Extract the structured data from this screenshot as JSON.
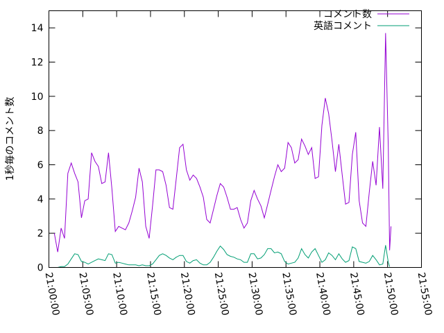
{
  "chart_data": {
    "type": "line",
    "title": "",
    "xlabel": "",
    "ylabel": "1秒毎のコメント数",
    "ylim": [
      0,
      15
    ],
    "yticks": [
      0,
      2,
      4,
      6,
      8,
      10,
      12,
      14
    ],
    "xlim_minutes": [
      0,
      55
    ],
    "xticks": [
      {
        "label": "21:00:00",
        "minute": 0
      },
      {
        "label": "21:05:00",
        "minute": 5
      },
      {
        "label": "21:10:00",
        "minute": 10
      },
      {
        "label": "21:15:00",
        "minute": 15
      },
      {
        "label": "21:20:00",
        "minute": 20
      },
      {
        "label": "21:25:00",
        "minute": 25
      },
      {
        "label": "21:30:00",
        "minute": 30
      },
      {
        "label": "21:35:00",
        "minute": 35
      },
      {
        "label": "21:40:00",
        "minute": 40
      },
      {
        "label": "21:45:00",
        "minute": 45
      },
      {
        "label": "21:50:00",
        "minute": 50
      },
      {
        "label": "21:55:00",
        "minute": 55
      }
    ],
    "grid": false,
    "legend_position": "top-right",
    "series": [
      {
        "name": "コメント数",
        "color": "#9400d3",
        "points": [
          [
            0.8,
            2.0
          ],
          [
            1.3,
            0.9
          ],
          [
            1.8,
            2.3
          ],
          [
            2.3,
            1.7
          ],
          [
            2.8,
            5.5
          ],
          [
            3.3,
            6.1
          ],
          [
            3.8,
            5.5
          ],
          [
            4.3,
            5.0
          ],
          [
            4.8,
            2.9
          ],
          [
            5.3,
            3.9
          ],
          [
            5.8,
            4.0
          ],
          [
            6.3,
            6.7
          ],
          [
            6.8,
            6.2
          ],
          [
            7.3,
            5.9
          ],
          [
            7.8,
            4.9
          ],
          [
            8.3,
            5.0
          ],
          [
            8.8,
            6.7
          ],
          [
            9.3,
            4.6
          ],
          [
            9.8,
            2.1
          ],
          [
            10.3,
            2.4
          ],
          [
            10.8,
            2.3
          ],
          [
            11.3,
            2.2
          ],
          [
            11.8,
            2.6
          ],
          [
            12.3,
            3.3
          ],
          [
            12.8,
            4.1
          ],
          [
            13.3,
            5.8
          ],
          [
            13.8,
            5.0
          ],
          [
            14.3,
            2.4
          ],
          [
            14.8,
            1.7
          ],
          [
            15.3,
            3.6
          ],
          [
            15.8,
            5.7
          ],
          [
            16.3,
            5.7
          ],
          [
            16.8,
            5.6
          ],
          [
            17.3,
            4.8
          ],
          [
            17.8,
            3.5
          ],
          [
            18.3,
            3.4
          ],
          [
            18.8,
            5.2
          ],
          [
            19.3,
            7.0
          ],
          [
            19.8,
            7.2
          ],
          [
            20.3,
            5.7
          ],
          [
            20.8,
            5.1
          ],
          [
            21.3,
            5.4
          ],
          [
            21.8,
            5.2
          ],
          [
            22.3,
            4.7
          ],
          [
            22.8,
            4.1
          ],
          [
            23.3,
            2.8
          ],
          [
            23.8,
            2.6
          ],
          [
            24.3,
            3.4
          ],
          [
            24.8,
            4.2
          ],
          [
            25.3,
            4.9
          ],
          [
            25.8,
            4.7
          ],
          [
            26.3,
            4.1
          ],
          [
            26.8,
            3.4
          ],
          [
            27.3,
            3.4
          ],
          [
            27.8,
            3.5
          ],
          [
            28.3,
            2.8
          ],
          [
            28.8,
            2.3
          ],
          [
            29.3,
            2.6
          ],
          [
            29.8,
            3.9
          ],
          [
            30.3,
            4.5
          ],
          [
            30.8,
            4.0
          ],
          [
            31.3,
            3.6
          ],
          [
            31.8,
            2.9
          ],
          [
            32.3,
            3.7
          ],
          [
            32.8,
            4.5
          ],
          [
            33.3,
            5.3
          ],
          [
            33.8,
            6.0
          ],
          [
            34.3,
            5.6
          ],
          [
            34.8,
            5.8
          ],
          [
            35.3,
            7.3
          ],
          [
            35.8,
            7.0
          ],
          [
            36.3,
            6.1
          ],
          [
            36.8,
            6.3
          ],
          [
            37.3,
            7.5
          ],
          [
            37.8,
            7.1
          ],
          [
            38.3,
            6.6
          ],
          [
            38.8,
            7.0
          ],
          [
            39.3,
            5.2
          ],
          [
            39.8,
            5.3
          ],
          [
            40.3,
            8.3
          ],
          [
            40.8,
            9.9
          ],
          [
            41.3,
            9.0
          ],
          [
            41.8,
            7.4
          ],
          [
            42.3,
            5.6
          ],
          [
            42.8,
            7.2
          ],
          [
            43.3,
            5.4
          ],
          [
            43.8,
            3.7
          ],
          [
            44.3,
            3.8
          ],
          [
            44.8,
            6.6
          ],
          [
            45.3,
            7.9
          ],
          [
            45.8,
            3.9
          ],
          [
            46.3,
            2.6
          ],
          [
            46.8,
            2.4
          ],
          [
            47.3,
            4.4
          ],
          [
            47.8,
            6.2
          ],
          [
            48.3,
            4.8
          ],
          [
            48.8,
            8.2
          ],
          [
            49.3,
            4.6
          ],
          [
            49.7,
            13.7
          ],
          [
            50.1,
            7.0
          ],
          [
            50.3,
            1.0
          ],
          [
            50.5,
            2.4
          ]
        ]
      },
      {
        "name": "英語コメント",
        "color": "#009e73",
        "points": [
          [
            0.8,
            0.0
          ],
          [
            1.3,
            0.0
          ],
          [
            1.8,
            0.05
          ],
          [
            2.3,
            0.05
          ],
          [
            2.8,
            0.2
          ],
          [
            3.3,
            0.5
          ],
          [
            3.8,
            0.8
          ],
          [
            4.3,
            0.75
          ],
          [
            4.8,
            0.35
          ],
          [
            5.3,
            0.3
          ],
          [
            5.8,
            0.2
          ],
          [
            6.3,
            0.3
          ],
          [
            6.8,
            0.4
          ],
          [
            7.3,
            0.5
          ],
          [
            7.8,
            0.45
          ],
          [
            8.3,
            0.4
          ],
          [
            8.8,
            0.8
          ],
          [
            9.3,
            0.75
          ],
          [
            9.8,
            0.25
          ],
          [
            10.3,
            0.3
          ],
          [
            10.8,
            0.25
          ],
          [
            11.3,
            0.2
          ],
          [
            11.8,
            0.15
          ],
          [
            12.3,
            0.15
          ],
          [
            12.8,
            0.15
          ],
          [
            13.3,
            0.1
          ],
          [
            13.8,
            0.15
          ],
          [
            14.3,
            0.1
          ],
          [
            14.8,
            0.1
          ],
          [
            15.3,
            0.2
          ],
          [
            15.8,
            0.45
          ],
          [
            16.3,
            0.7
          ],
          [
            16.8,
            0.8
          ],
          [
            17.3,
            0.7
          ],
          [
            17.8,
            0.55
          ],
          [
            18.3,
            0.45
          ],
          [
            18.8,
            0.6
          ],
          [
            19.3,
            0.7
          ],
          [
            19.8,
            0.7
          ],
          [
            20.3,
            0.35
          ],
          [
            20.8,
            0.25
          ],
          [
            21.3,
            0.4
          ],
          [
            21.8,
            0.45
          ],
          [
            22.3,
            0.25
          ],
          [
            22.8,
            0.15
          ],
          [
            23.3,
            0.15
          ],
          [
            23.8,
            0.3
          ],
          [
            24.3,
            0.6
          ],
          [
            24.8,
            0.95
          ],
          [
            25.3,
            1.25
          ],
          [
            25.8,
            1.05
          ],
          [
            26.3,
            0.75
          ],
          [
            26.8,
            0.65
          ],
          [
            27.3,
            0.6
          ],
          [
            27.8,
            0.5
          ],
          [
            28.3,
            0.45
          ],
          [
            28.8,
            0.3
          ],
          [
            29.3,
            0.3
          ],
          [
            29.8,
            0.8
          ],
          [
            30.3,
            0.8
          ],
          [
            30.8,
            0.5
          ],
          [
            31.3,
            0.55
          ],
          [
            31.8,
            0.75
          ],
          [
            32.3,
            1.1
          ],
          [
            32.8,
            1.1
          ],
          [
            33.3,
            0.85
          ],
          [
            33.8,
            0.9
          ],
          [
            34.3,
            0.8
          ],
          [
            34.8,
            0.35
          ],
          [
            35.3,
            0.2
          ],
          [
            35.8,
            0.25
          ],
          [
            36.3,
            0.3
          ],
          [
            36.8,
            0.55
          ],
          [
            37.3,
            1.1
          ],
          [
            37.8,
            0.75
          ],
          [
            38.3,
            0.55
          ],
          [
            38.8,
            0.9
          ],
          [
            39.3,
            1.1
          ],
          [
            39.8,
            0.7
          ],
          [
            40.3,
            0.3
          ],
          [
            40.8,
            0.45
          ],
          [
            41.3,
            0.85
          ],
          [
            41.8,
            0.7
          ],
          [
            42.3,
            0.45
          ],
          [
            42.8,
            0.8
          ],
          [
            43.3,
            0.5
          ],
          [
            43.8,
            0.3
          ],
          [
            44.3,
            0.4
          ],
          [
            44.8,
            1.2
          ],
          [
            45.3,
            1.1
          ],
          [
            45.8,
            0.35
          ],
          [
            46.3,
            0.3
          ],
          [
            46.8,
            0.25
          ],
          [
            47.3,
            0.35
          ],
          [
            47.8,
            0.7
          ],
          [
            48.3,
            0.45
          ],
          [
            48.8,
            0.15
          ],
          [
            49.3,
            0.2
          ],
          [
            49.7,
            1.3
          ],
          [
            50.1,
            0.3
          ],
          [
            50.3,
            0.05
          ]
        ]
      }
    ]
  }
}
